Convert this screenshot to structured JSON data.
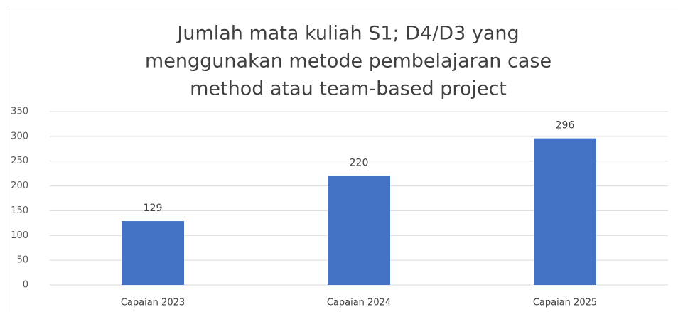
{
  "chart_data": {
    "type": "bar",
    "title": [
      "Jumlah mata kuliah S1; D4/D3 yang",
      "menggunakan metode pembelajaran case",
      "method atau team-based project"
    ],
    "categories": [
      "Capaian 2023",
      "Capaian 2024",
      "Capaian 2025"
    ],
    "values": [
      129,
      220,
      296
    ],
    "color": "#4472c4",
    "ylim": [
      0,
      350
    ],
    "yticks": [
      0,
      50,
      100,
      150,
      200,
      250,
      300,
      350
    ],
    "grid": true
  }
}
